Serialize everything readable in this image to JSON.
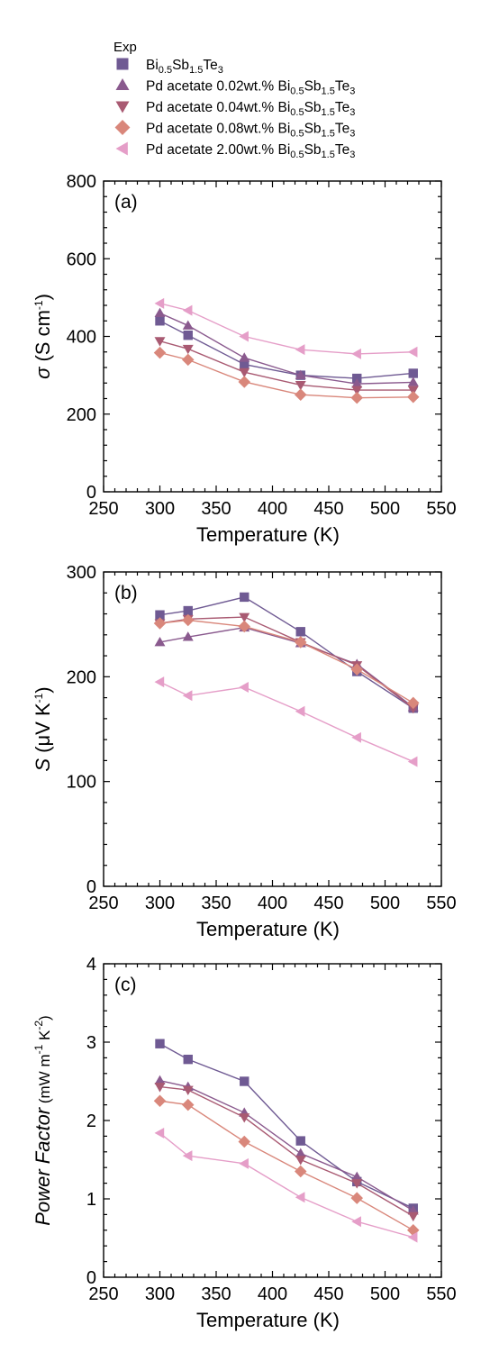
{
  "legend": {
    "header": "Exp",
    "entries": [
      {
        "key": "bst",
        "prefix": "",
        "marker": "square",
        "color": "#6f5a93"
      },
      {
        "key": "pd002",
        "prefix": "Pd acetate 0.02wt.% ",
        "marker": "triangle-up",
        "color": "#8a5a8e"
      },
      {
        "key": "pd004",
        "prefix": "Pd acetate 0.04wt.% ",
        "marker": "triangle-down",
        "color": "#a95a72"
      },
      {
        "key": "pd008",
        "prefix": "Pd acetate 0.08wt.% ",
        "marker": "diamond",
        "color": "#d9877b"
      },
      {
        "key": "pd200",
        "prefix": "Pd acetate 2.00wt.% ",
        "marker": "triangle-left",
        "color": "#e59ec8"
      }
    ],
    "compound": {
      "bi": "Bi",
      "bi_sub": "0.5",
      "sb": "Sb",
      "sb_sub": "1.5",
      "te": "Te",
      "te_sub": "3"
    }
  },
  "chart_data": [
    {
      "type": "line",
      "panel_label": "(a)",
      "xlabel": "Temperature  (K)",
      "ylabel": {
        "symbol": "σ",
        "unit": " (S cm",
        "sup": "-1",
        "close": ")"
      },
      "xlim": [
        250,
        550
      ],
      "ylim": [
        0,
        800
      ],
      "xticks": [
        "250",
        "300",
        "350",
        "400",
        "450",
        "500",
        "550"
      ],
      "yticks": [
        "0",
        "200",
        "400",
        "600",
        "800"
      ],
      "x": [
        300,
        325,
        375,
        425,
        475,
        525
      ],
      "series": [
        {
          "key": "bst",
          "values": [
            440,
            403,
            328,
            300,
            292,
            305
          ]
        },
        {
          "key": "pd002",
          "values": [
            460,
            428,
            345,
            300,
            278,
            282
          ]
        },
        {
          "key": "pd004",
          "values": [
            388,
            368,
            308,
            275,
            262,
            262
          ]
        },
        {
          "key": "pd008",
          "values": [
            358,
            340,
            283,
            250,
            242,
            244
          ]
        },
        {
          "key": "pd200",
          "values": [
            485,
            467,
            400,
            366,
            355,
            360
          ]
        }
      ]
    },
    {
      "type": "line",
      "panel_label": "(b)",
      "xlabel": "Temperature  (K)",
      "ylabel": {
        "symbol": "S",
        "unit": " (μV K",
        "sup": "-1",
        "close": ")"
      },
      "xlim": [
        250,
        550
      ],
      "ylim": [
        0,
        300
      ],
      "xticks": [
        "250",
        "300",
        "350",
        "400",
        "450",
        "500",
        "550"
      ],
      "yticks": [
        "0",
        "100",
        "200",
        "300"
      ],
      "x": [
        300,
        325,
        375,
        425,
        475,
        525
      ],
      "series": [
        {
          "key": "bst",
          "values": [
            259,
            263,
            276,
            243,
            205,
            170
          ]
        },
        {
          "key": "pd002",
          "values": [
            233,
            238,
            247,
            232,
            212,
            171
          ]
        },
        {
          "key": "pd004",
          "values": [
            251,
            255,
            257,
            233,
            211,
            170
          ]
        },
        {
          "key": "pd008",
          "values": [
            251,
            254,
            248,
            233,
            207,
            175
          ]
        },
        {
          "key": "pd200",
          "values": [
            195,
            182,
            190,
            167,
            142,
            119
          ]
        }
      ]
    },
    {
      "type": "line",
      "panel_label": "(c)",
      "xlabel": "Temperature  (K)",
      "ylabel": {
        "symbol": "Power Factor",
        "unit": " (mW m",
        "sup": "-1",
        "unit2": " K",
        "sup2": "-2",
        "close": ")"
      },
      "xlim": [
        250,
        550
      ],
      "ylim": [
        0,
        4
      ],
      "xticks": [
        "250",
        "300",
        "350",
        "400",
        "450",
        "500",
        "550"
      ],
      "yticks": [
        "0",
        "1",
        "2",
        "3",
        "4"
      ],
      "x": [
        300,
        325,
        375,
        425,
        475,
        525
      ],
      "series": [
        {
          "key": "bst",
          "values": [
            2.98,
            2.78,
            2.5,
            1.74,
            1.22,
            0.88
          ]
        },
        {
          "key": "pd002",
          "values": [
            2.51,
            2.43,
            2.1,
            1.58,
            1.28,
            0.85
          ]
        },
        {
          "key": "pd004",
          "values": [
            2.43,
            2.39,
            2.04,
            1.5,
            1.2,
            0.78
          ]
        },
        {
          "key": "pd008",
          "values": [
            2.25,
            2.2,
            1.73,
            1.35,
            1.01,
            0.6
          ]
        },
        {
          "key": "pd200",
          "values": [
            1.84,
            1.55,
            1.45,
            1.02,
            0.71,
            0.51
          ]
        }
      ]
    }
  ]
}
